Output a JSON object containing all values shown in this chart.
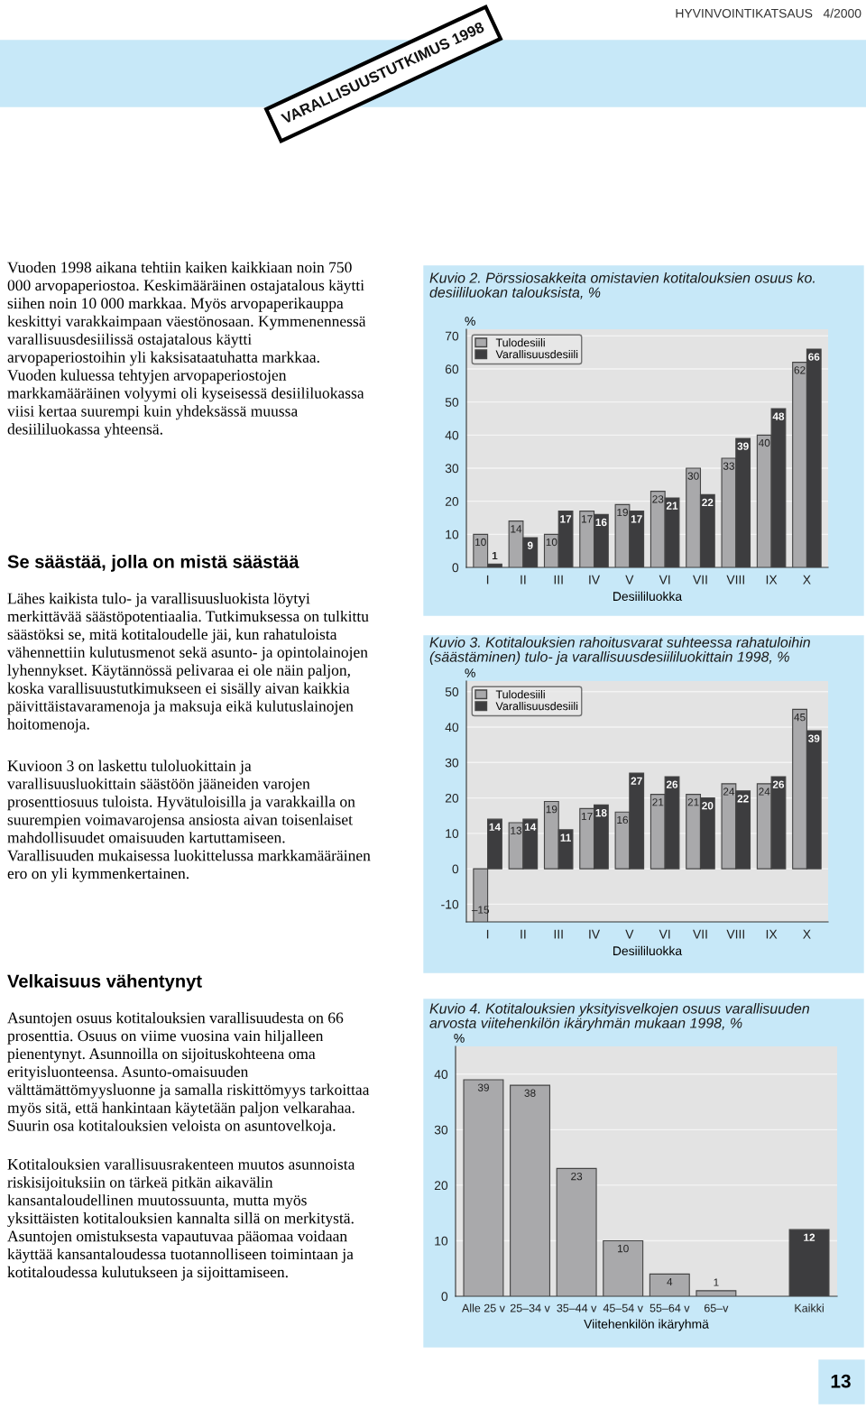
{
  "chart_data": [
    {
      "type": "other",
      "annotations": [
        "HYVINVOINTIKATSAUS   4/2000",
        "VARALLISUUSTUTKIMUS 1998",
        "Vuoden 1998 aikana tehtiin kaiken kaikkiaan noin 750 000 arvopaperiostoa. Keskimääräinen ostajatalous käytti siihen noin 10 000 markkaa. Myös arvopaperikauppa keskittyi varakkaimpaan väestönosaan. Kymmenennessä varallisuusdesiilissä ostajatalous käytti arvopaperiostoihin yli kaksisataatuhatta markkaa. Vuoden kuluessa tehtyjen arvopaperiostojen markkamääräinen volyymi oli kyseisessä desiililuokassa viisi kertaa suurempi kuin yhdeksässä muussa desiililuokassa yhteensä.",
        "Se säästää, jolla on mistä säästää",
        "Lähes kaikista tulo- ja varallisuusluokista löytyi merkittävää säästöpotentiaalia. Tutkimuksessa on tulkittu säästöksi se, mitä kotitaloudelle jäi, kun rahatuloista vähennettiin kulutusmenot sekä asunto- ja opintolainojen lyhennykset. Käytännössä pelivaraa ei ole näin paljon, koska varallisuustutkimukseen ei sisälly aivan kaikkia päivittäistavaramenoja ja maksuja eikä kulutuslainojen hoitomenoja.",
        "Kuvioon 3 on laskettu tuloluokittain ja varallisuusluokittain säästöön jääneiden varojen prosenttiosuus tuloista. Hyvätuloisilla ja varakkailla on suurempien voimavarojensa ansiosta aivan toisenlaiset mahdollisuudet omaisuuden kartuttamiseen. Varallisuuden mukaisessa luokittelussa markkamääräinen ero on yli kymmenkertainen.",
        "Velkaisuus vähentynyt",
        "Asuntojen osuus kotitalouksien varallisuudesta on 66 prosenttia. Osuus on viime vuosina vain hiljalleen pienentynyt. Asunnoilla on sijoituskohteena oma erityisluonteensa. Asunto-omaisuuden välttämättömyysluonne ja samalla riskittömyys tarkoittaa myös sitä, että hankintaan käytetään paljon velkarahaa. Suurin osa kotitalouksien veloista on asuntovelkoja.",
        "Kotitalouksien varallisuusrakenteen muutos asunnoista riskisijoituksiin on tärkeä pitkän aikavälin kansantaloudellinen muutossuunta, mutta myös yksittäisten kotitalouksien kannalta sillä on merkitystä. Asuntojen omistuksesta vapautuvaa pääomaa voidaan käyttää kansantaloudessa tuotannolliseen toimintaan ja kotitaloudessa kulutukseen ja sijoittamiseen.",
        "13"
      ]
    },
    {
      "type": "bar",
      "title": "Kuvio 2. Pörssiosakkeita omistavien kotitalouksien osuus ko. desiililuokan talouksista, %",
      "xlabel": "Desiililuokka",
      "ylabel": "%",
      "categories": [
        "I",
        "II",
        "III",
        "IV",
        "V",
        "VI",
        "VII",
        "VIII",
        "IX",
        "X"
      ],
      "series": [
        {
          "name": "Tulodesiili",
          "color": "#a9a9ab",
          "values": [
            10,
            14,
            10,
            17,
            19,
            23,
            30,
            33,
            40,
            62
          ]
        },
        {
          "name": "Varallisuusdesiili",
          "color": "#3d3d3f",
          "values": [
            1,
            9,
            17,
            16,
            17,
            21,
            22,
            39,
            48,
            66
          ]
        }
      ],
      "ylim": [
        0,
        72
      ],
      "yticks": [
        0,
        10,
        20,
        30,
        40,
        50,
        60,
        70
      ],
      "grid": "y",
      "legend": "top left",
      "data_labels": true
    },
    {
      "type": "bar",
      "title": "Kuvio 3. Kotitalouksien rahoitusvarat suhteessa rahatuloihin (säästäminen) tulo- ja varallisuusdesiililuokittain 1998, %",
      "xlabel": "Desiililuokka",
      "ylabel": "%",
      "categories": [
        "I",
        "II",
        "III",
        "IV",
        "V",
        "VI",
        "VII",
        "VIII",
        "IX",
        "X"
      ],
      "series": [
        {
          "name": "Tulodesiili",
          "color": "#a9a9ab",
          "values": [
            -15,
            13,
            19,
            17,
            16,
            21,
            21,
            24,
            24,
            45
          ],
          "value_labels": [
            "–15",
            "13",
            "19",
            "17",
            "16",
            "21",
            "21",
            "24",
            "24",
            "45"
          ]
        },
        {
          "name": "Varallisuusdesiili",
          "color": "#3d3d3f",
          "values": [
            14,
            14,
            11,
            18,
            27,
            26,
            20,
            22,
            26,
            39
          ]
        }
      ],
      "ylim": [
        -15,
        53
      ],
      "yticks": [
        -10,
        0,
        10,
        20,
        30,
        40,
        50
      ],
      "grid": "y",
      "legend": "top left",
      "data_labels": true
    },
    {
      "type": "bar",
      "title": "Kuvio 4. Kotitalouksien yksityisvelkojen osuus varallisuuden arvosta viitehenkilön ikäryhmän mukaan 1998, %",
      "xlabel": "Viitehenkilön ikäryhmä",
      "ylabel": "%",
      "categories": [
        "Alle 25 v",
        "25–34 v",
        "35–44 v",
        "45–54 v",
        "55–64 v",
        "65–v",
        null,
        "Kaikki"
      ],
      "values": [
        39,
        38,
        23,
        10,
        4,
        1,
        null,
        12
      ],
      "colors": [
        "#a9a9ab",
        "#a9a9ab",
        "#a9a9ab",
        "#a9a9ab",
        "#a9a9ab",
        "#a9a9ab",
        "#a9a9ab",
        "#3d3d3f"
      ],
      "ylim": [
        0,
        45
      ],
      "yticks": [
        0,
        10,
        20,
        30,
        40
      ],
      "grid": "y",
      "data_labels": true
    }
  ]
}
